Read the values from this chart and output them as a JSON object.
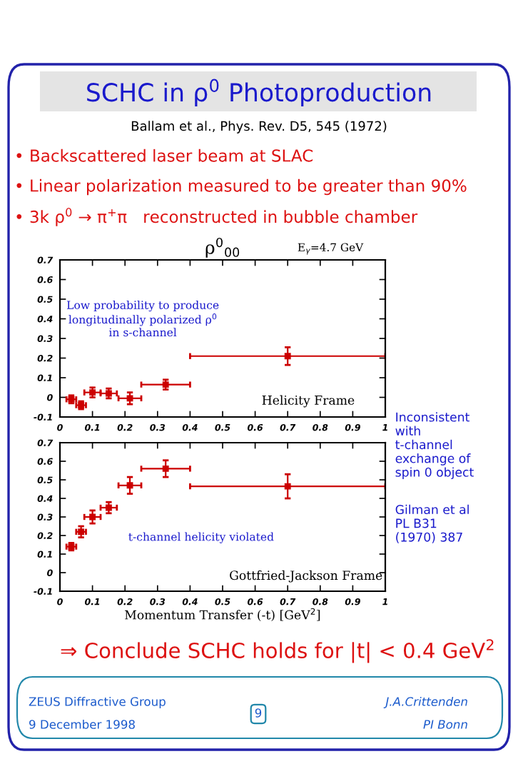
{
  "chart_data": [
    {
      "type": "other",
      "title": "SCHC in ρ$^{0}$ Photoproduction",
      "subtitle": "Ballam et al., Phys. Rev. D5, 545 (1972)",
      "annotations": [
        "• Backscattered laser beam at SLAC",
        "• Linear polarization measured to be greater than 90%",
        "• 3k ρ$^{0}$ → π$^{+}$π   reconstructed in bubble chamber"
      ]
    },
    {
      "type": "scatter",
      "title": "ρ$^{0}$$_{00}$",
      "xlim": [
        0,
        1
      ],
      "ylim": [
        -0.1,
        0.7
      ],
      "xticks": [
        0,
        0.1,
        0.2,
        0.3,
        0.4,
        0.5,
        0.6,
        0.7,
        0.8,
        0.9,
        1
      ],
      "yticks": [
        -0.1,
        0,
        0.1,
        0.2,
        0.3,
        0.4,
        0.5,
        0.6,
        0.7
      ],
      "marker": "square",
      "grid": false,
      "legend": false,
      "annotations": [
        "E$_{γ}$=4.7 GeV",
        "Low probability to produce\nlongitudinally polarized ρ$^{0}$\nin s-channel",
        "Helicity Frame"
      ],
      "series": [
        {
          "color": "#cc0000",
          "x": [
            0.035,
            0.065,
            0.1,
            0.15,
            0.215,
            0.325,
            0.7
          ],
          "values": [
            -0.01,
            -0.04,
            0.025,
            0.02,
            -0.005,
            0.065,
            0.21
          ],
          "errors": [
            0.02,
            0.02,
            0.025,
            0.025,
            0.03,
            0.025,
            0.045
          ],
          "xerrors": [
            0.015,
            0.015,
            0.025,
            0.025,
            0.035,
            0.075,
            0.3
          ]
        }
      ]
    },
    {
      "type": "scatter",
      "xlabel": "Momentum Transfer (-t) [GeV$^{2}$]",
      "xlim": [
        0,
        1
      ],
      "ylim": [
        -0.1,
        0.7
      ],
      "xticks": [
        0,
        0.1,
        0.2,
        0.3,
        0.4,
        0.5,
        0.6,
        0.7,
        0.8,
        0.9,
        1
      ],
      "yticks": [
        -0.1,
        0,
        0.1,
        0.2,
        0.3,
        0.4,
        0.5,
        0.6,
        0.7
      ],
      "marker": "square",
      "grid": false,
      "legend": false,
      "annotations": [
        "t-channel helicity violated",
        "Gottfried-Jackson Frame",
        "Inconsistent\nwith\nt-channel\nexchange of\nspin 0 object",
        "Gilman et al\nPL B31\n(1970) 387"
      ],
      "series": [
        {
          "color": "#cc0000",
          "x": [
            0.035,
            0.065,
            0.1,
            0.15,
            0.215,
            0.325,
            0.7
          ],
          "values": [
            0.14,
            0.22,
            0.3,
            0.35,
            0.47,
            0.56,
            0.465
          ],
          "errors": [
            0.02,
            0.03,
            0.035,
            0.03,
            0.045,
            0.045,
            0.065
          ],
          "xerrors": [
            0.015,
            0.015,
            0.025,
            0.025,
            0.035,
            0.075,
            0.3
          ]
        }
      ]
    },
    {
      "type": "other",
      "title": "⇒ Conclude SCHC holds for |t| < 0.4 GeV$^{2}$",
      "annotations": [
        "ZEUS Diffractive Group",
        "9 December 1998",
        "9",
        "J.A.Crittenden",
        "PI Bonn"
      ]
    }
  ]
}
